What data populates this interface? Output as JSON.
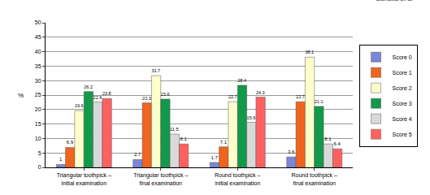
{
  "chart_data": {
    "type": "bar",
    "annotations": [
      "Zanatta et al"
    ],
    "y_label": "%",
    "categories": [
      "Triangular toothpick – initial examination",
      "Triangular toothpick – final examination",
      "Round toothpick – initial examination",
      "Round toothpick – final examination"
    ],
    "series": [
      {
        "name": "Score 0",
        "color": "#7b86d6",
        "values": [
          1,
          2.7,
          1.7,
          3.6
        ]
      },
      {
        "name": "Score 1",
        "color": "#f2641e",
        "values": [
          6.9,
          22.3,
          7.1,
          22.7
        ]
      },
      {
        "name": "Score 2",
        "color": "#ffffcc",
        "values": [
          19.6,
          31.7,
          22.7,
          38.1
        ]
      },
      {
        "name": "Score 3",
        "color": "#13994a",
        "values": [
          26.2,
          23.6,
          28.4,
          21.1
        ]
      },
      {
        "name": "Score 4",
        "color": "#d9d9d9",
        "values": [
          22.6,
          11.5,
          15.6,
          8.1
        ]
      },
      {
        "name": "Score 5",
        "color": "#ff6161",
        "values": [
          23.8,
          8.1,
          24.3,
          6.4
        ]
      }
    ],
    "ylim": [
      0,
      50
    ],
    "yticks": [
      0,
      5,
      10,
      15,
      20,
      25,
      30,
      35,
      40,
      45,
      50
    ],
    "grid": true,
    "legend": "right",
    "data_labels": true
  }
}
